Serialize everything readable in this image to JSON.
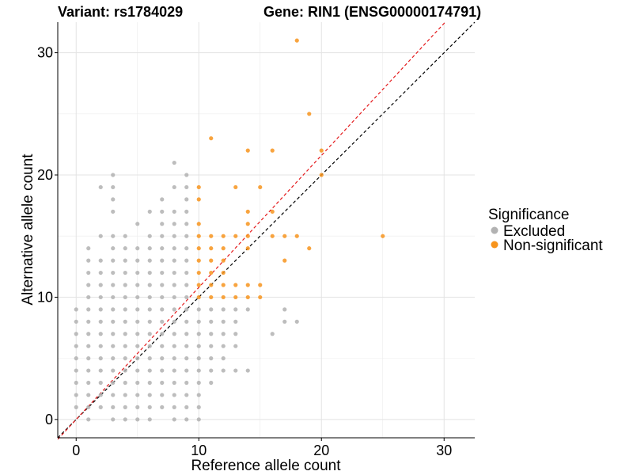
{
  "chart_data": {
    "type": "scatter",
    "titles": {
      "variant": "Variant: rs1784029",
      "gene": "Gene: RIN1 (ENSG00000174791)"
    },
    "xlabel": "Reference allele count",
    "ylabel": "Alternative allele count",
    "xlim": [
      -1.5,
      32.5
    ],
    "ylim": [
      -1.5,
      32.5
    ],
    "x_ticks": [
      0,
      10,
      20,
      30
    ],
    "y_ticks": [
      0,
      10,
      20,
      30
    ],
    "grid": true,
    "legend": {
      "title": "Significance",
      "placement": "right",
      "entries": [
        {
          "label": "Excluded",
          "color": "#b2b2b2"
        },
        {
          "label": "Non-significant",
          "color": "#f7941d"
        }
      ]
    },
    "reference_lines": [
      {
        "name": "identity",
        "slope": 1.0,
        "intercept": 0,
        "color": "#000000",
        "style": "dashed"
      },
      {
        "name": "fitted",
        "slope": 1.08,
        "intercept": 0,
        "color": "#e41a1c",
        "style": "dashed"
      }
    ],
    "series": [
      {
        "name": "Excluded",
        "color": "#b2b2b2",
        "points": [
          [
            0,
            1
          ],
          [
            0,
            2
          ],
          [
            0,
            3
          ],
          [
            0,
            4
          ],
          [
            0,
            5
          ],
          [
            0,
            6
          ],
          [
            0,
            7
          ],
          [
            0,
            8
          ],
          [
            0,
            9
          ],
          [
            1,
            0
          ],
          [
            1,
            1
          ],
          [
            1,
            2
          ],
          [
            1,
            3
          ],
          [
            1,
            4
          ],
          [
            1,
            5
          ],
          [
            1,
            6
          ],
          [
            1,
            7
          ],
          [
            1,
            8
          ],
          [
            1,
            9
          ],
          [
            1,
            10
          ],
          [
            1,
            11
          ],
          [
            1,
            12
          ],
          [
            1,
            13
          ],
          [
            1,
            14
          ],
          [
            2,
            1
          ],
          [
            2,
            2
          ],
          [
            2,
            3
          ],
          [
            2,
            4
          ],
          [
            2,
            5
          ],
          [
            2,
            6
          ],
          [
            2,
            7
          ],
          [
            2,
            8
          ],
          [
            2,
            9
          ],
          [
            2,
            10
          ],
          [
            2,
            11
          ],
          [
            2,
            12
          ],
          [
            2,
            13
          ],
          [
            2,
            15
          ],
          [
            2,
            19
          ],
          [
            3,
            0
          ],
          [
            3,
            1
          ],
          [
            3,
            2
          ],
          [
            3,
            3
          ],
          [
            3,
            4
          ],
          [
            3,
            5
          ],
          [
            3,
            6
          ],
          [
            3,
            7
          ],
          [
            3,
            8
          ],
          [
            3,
            9
          ],
          [
            3,
            10
          ],
          [
            3,
            11
          ],
          [
            3,
            12
          ],
          [
            3,
            13
          ],
          [
            3,
            14
          ],
          [
            3,
            15
          ],
          [
            3,
            17
          ],
          [
            3,
            18
          ],
          [
            3,
            19
          ],
          [
            3,
            20
          ],
          [
            4,
            0
          ],
          [
            4,
            1
          ],
          [
            4,
            2
          ],
          [
            4,
            3
          ],
          [
            4,
            4
          ],
          [
            4,
            5
          ],
          [
            4,
            6
          ],
          [
            4,
            7
          ],
          [
            4,
            8
          ],
          [
            4,
            9
          ],
          [
            4,
            10
          ],
          [
            4,
            11
          ],
          [
            4,
            12
          ],
          [
            4,
            13
          ],
          [
            4,
            14
          ],
          [
            4,
            15
          ],
          [
            5,
            0
          ],
          [
            5,
            1
          ],
          [
            5,
            2
          ],
          [
            5,
            3
          ],
          [
            5,
            4
          ],
          [
            5,
            5
          ],
          [
            5,
            6
          ],
          [
            5,
            7
          ],
          [
            5,
            8
          ],
          [
            5,
            9
          ],
          [
            5,
            10
          ],
          [
            5,
            11
          ],
          [
            5,
            12
          ],
          [
            5,
            13
          ],
          [
            5,
            14
          ],
          [
            5,
            16
          ],
          [
            6,
            0
          ],
          [
            6,
            1
          ],
          [
            6,
            2
          ],
          [
            6,
            3
          ],
          [
            6,
            4
          ],
          [
            6,
            5
          ],
          [
            6,
            6
          ],
          [
            6,
            7
          ],
          [
            6,
            8
          ],
          [
            6,
            9
          ],
          [
            6,
            10
          ],
          [
            6,
            11
          ],
          [
            6,
            12
          ],
          [
            6,
            13
          ],
          [
            6,
            14
          ],
          [
            6,
            15
          ],
          [
            6,
            17
          ],
          [
            7,
            1
          ],
          [
            7,
            2
          ],
          [
            7,
            3
          ],
          [
            7,
            4
          ],
          [
            7,
            5
          ],
          [
            7,
            6
          ],
          [
            7,
            7
          ],
          [
            7,
            8
          ],
          [
            7,
            9
          ],
          [
            7,
            10
          ],
          [
            7,
            11
          ],
          [
            7,
            12
          ],
          [
            7,
            13
          ],
          [
            7,
            14
          ],
          [
            7,
            15
          ],
          [
            7,
            16
          ],
          [
            7,
            17
          ],
          [
            7,
            18
          ],
          [
            8,
            0
          ],
          [
            8,
            1
          ],
          [
            8,
            2
          ],
          [
            8,
            3
          ],
          [
            8,
            4
          ],
          [
            8,
            5
          ],
          [
            8,
            6
          ],
          [
            8,
            7
          ],
          [
            8,
            8
          ],
          [
            8,
            9
          ],
          [
            8,
            10
          ],
          [
            8,
            11
          ],
          [
            8,
            12
          ],
          [
            8,
            13
          ],
          [
            8,
            14
          ],
          [
            8,
            15
          ],
          [
            8,
            16
          ],
          [
            8,
            17
          ],
          [
            8,
            19
          ],
          [
            8,
            21
          ],
          [
            9,
            0
          ],
          [
            9,
            1
          ],
          [
            9,
            2
          ],
          [
            9,
            3
          ],
          [
            9,
            4
          ],
          [
            9,
            5
          ],
          [
            9,
            6
          ],
          [
            9,
            7
          ],
          [
            9,
            8
          ],
          [
            9,
            9
          ],
          [
            9,
            10
          ],
          [
            9,
            11
          ],
          [
            9,
            12
          ],
          [
            9,
            13
          ],
          [
            9,
            14
          ],
          [
            9,
            15
          ],
          [
            9,
            16
          ],
          [
            9,
            17
          ],
          [
            9,
            18
          ],
          [
            9,
            19
          ],
          [
            9,
            20
          ],
          [
            10,
            0
          ],
          [
            10,
            1
          ],
          [
            10,
            2
          ],
          [
            10,
            3
          ],
          [
            10,
            4
          ],
          [
            10,
            5
          ],
          [
            10,
            6
          ],
          [
            10,
            7
          ],
          [
            10,
            8
          ],
          [
            10,
            9
          ],
          [
            11,
            3
          ],
          [
            11,
            4
          ],
          [
            11,
            5
          ],
          [
            11,
            6
          ],
          [
            11,
            7
          ],
          [
            11,
            8
          ],
          [
            11,
            9
          ],
          [
            12,
            4
          ],
          [
            12,
            5
          ],
          [
            12,
            6
          ],
          [
            12,
            7
          ],
          [
            12,
            8
          ],
          [
            12,
            9
          ],
          [
            13,
            4
          ],
          [
            13,
            6
          ],
          [
            13,
            7
          ],
          [
            13,
            8
          ],
          [
            13,
            9
          ],
          [
            14,
            4
          ],
          [
            14,
            9
          ],
          [
            16,
            7
          ],
          [
            17,
            8
          ],
          [
            17,
            9
          ],
          [
            18,
            8
          ]
        ]
      },
      {
        "name": "Non-significant",
        "color": "#f7941d",
        "points": [
          [
            10,
            10
          ],
          [
            10,
            11
          ],
          [
            10,
            12
          ],
          [
            10,
            13
          ],
          [
            10,
            14
          ],
          [
            10,
            15
          ],
          [
            10,
            16
          ],
          [
            10,
            18
          ],
          [
            10,
            19
          ],
          [
            11,
            10
          ],
          [
            11,
            11
          ],
          [
            11,
            12
          ],
          [
            11,
            13
          ],
          [
            11,
            14
          ],
          [
            11,
            15
          ],
          [
            11,
            23
          ],
          [
            12,
            10
          ],
          [
            12,
            11
          ],
          [
            12,
            12
          ],
          [
            12,
            13
          ],
          [
            12,
            14
          ],
          [
            12,
            15
          ],
          [
            13,
            10
          ],
          [
            13,
            11
          ],
          [
            13,
            15
          ],
          [
            13,
            19
          ],
          [
            14,
            10
          ],
          [
            14,
            11
          ],
          [
            14,
            14
          ],
          [
            14,
            15
          ],
          [
            14,
            16
          ],
          [
            14,
            17
          ],
          [
            14,
            22
          ],
          [
            15,
            10
          ],
          [
            15,
            11
          ],
          [
            15,
            19
          ],
          [
            16,
            15
          ],
          [
            16,
            17
          ],
          [
            16,
            22
          ],
          [
            17,
            13
          ],
          [
            17,
            15
          ],
          [
            18,
            15
          ],
          [
            18,
            31
          ],
          [
            19,
            14
          ],
          [
            19,
            25
          ],
          [
            20,
            20
          ],
          [
            20,
            22
          ],
          [
            25,
            15
          ]
        ]
      }
    ]
  }
}
